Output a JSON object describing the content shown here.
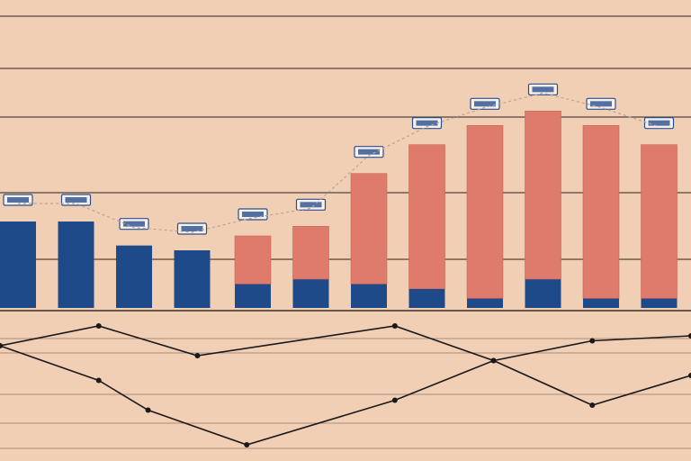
{
  "colors": {
    "background": "#f1cfb4",
    "grid": "#3d2c26",
    "blue_series": "#1f4a8a",
    "red_series": "#df7b6c",
    "line_series": "#1a1a1a",
    "label_box": "#2a4f8f"
  },
  "chart_data": [
    {
      "type": "bar",
      "stacked": true,
      "title": "",
      "xlabel": "",
      "ylabel": "",
      "grid": true,
      "legend": "none",
      "ylim": [
        0,
        60
      ],
      "categories": [
        "",
        "",
        "",
        "",
        "",
        "",
        "",
        "",
        "",
        "",
        "",
        ""
      ],
      "series": [
        {
          "color": "blue",
          "values": [
            18,
            18,
            13,
            12,
            5,
            6,
            5,
            4,
            2,
            6,
            2,
            2
          ]
        },
        {
          "color": "red",
          "values": [
            0,
            0,
            0,
            0,
            10,
            11,
            23,
            30,
            36,
            35,
            36,
            32
          ]
        }
      ]
    },
    {
      "type": "line",
      "title": "",
      "xlabel": "",
      "ylabel": "",
      "grid": true,
      "legend": "none",
      "ylim": [
        0,
        30
      ],
      "series": [
        {
          "x": [
            0,
            2,
            4,
            8,
            10,
            12,
            14
          ],
          "values": [
            22,
            26,
            20,
            26,
            19,
            10,
            16
          ]
        },
        {
          "x": [
            0,
            2,
            3,
            5,
            8,
            10,
            12,
            14
          ],
          "values": [
            22,
            15,
            9,
            2,
            11,
            19,
            23,
            24
          ]
        }
      ]
    }
  ]
}
